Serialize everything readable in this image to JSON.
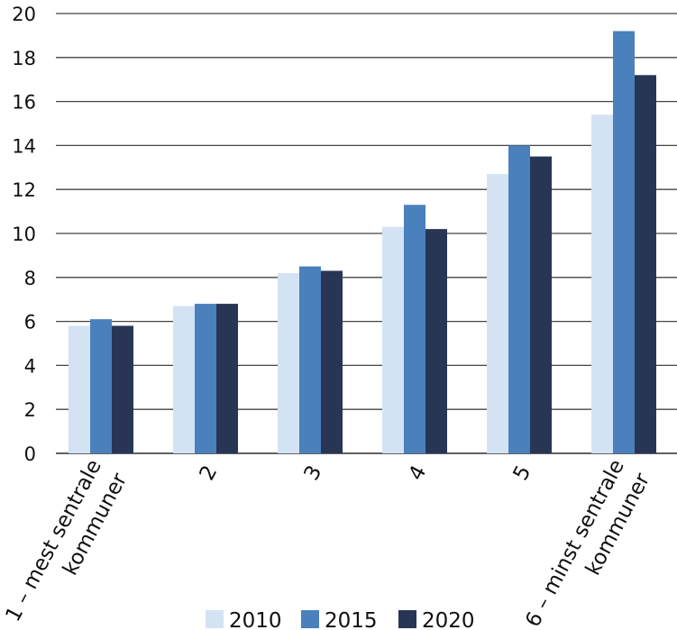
{
  "chart_data": {
    "type": "bar",
    "categories": [
      "1 – mest sentrale kommuner",
      "2",
      "3",
      "4",
      "5",
      "6 – minst sentrale kommuner"
    ],
    "category_lines": [
      [
        "1 – mest sentrale",
        "kommuner"
      ],
      [
        "2"
      ],
      [
        "3"
      ],
      [
        "4"
      ],
      [
        "5"
      ],
      [
        "6 – minst sentrale",
        "kommuner"
      ]
    ],
    "series": [
      {
        "name": "2010",
        "color": "#d4e3f4",
        "values": [
          5.8,
          6.7,
          8.2,
          10.3,
          12.7,
          15.4
        ]
      },
      {
        "name": "2015",
        "color": "#4a80bc",
        "values": [
          6.1,
          6.8,
          8.5,
          11.3,
          14.0,
          19.2
        ]
      },
      {
        "name": "2020",
        "color": "#283555",
        "values": [
          5.8,
          6.8,
          8.3,
          10.2,
          13.5,
          17.2
        ]
      }
    ],
    "yticks": [
      "0",
      "2",
      "4",
      "6",
      "8",
      "10",
      "12",
      "14",
      "16",
      "18",
      "20"
    ],
    "ylim": [
      0,
      20
    ],
    "grid": true,
    "legend": "bottom",
    "title": "",
    "xlabel": "",
    "ylabel": ""
  }
}
